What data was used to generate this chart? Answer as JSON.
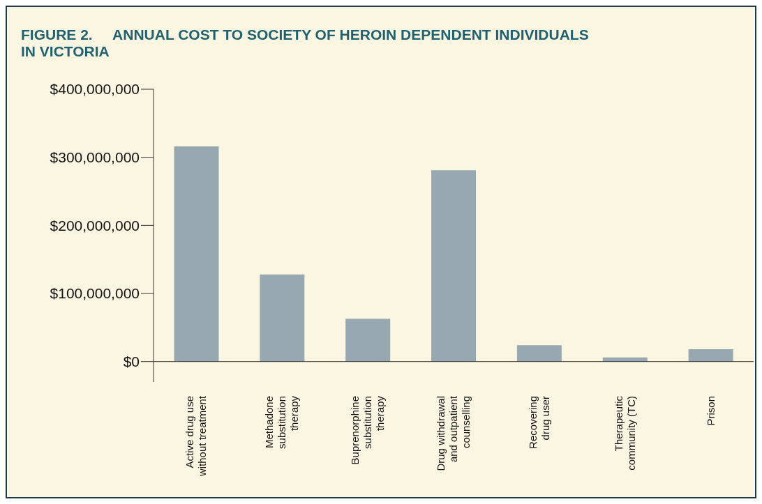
{
  "chart_data": {
    "type": "bar",
    "title": "FIGURE 2.     ANNUAL COST TO SOCIETY OF HEROIN DEPENDENT INDIVIDUALS IN VICTORIA",
    "categories": [
      "Active drug use\nwithout treatment",
      "Methadone\nsubstitution\ntherapy",
      "Buprenorphine\nsubstitution\ntherapy",
      "Drug withdrawal\nand outpatient\ncounselling",
      "Recovering\ndrug user",
      "Therapeutic\ncommunity (TC)",
      "Prison"
    ],
    "values": [
      316000000,
      128000000,
      63000000,
      281000000,
      24000000,
      6000000,
      18000000
    ],
    "color": "#97a8b0",
    "ylim": [
      -30000000,
      400000000
    ],
    "yticks": [
      {
        "value": 0,
        "label": "$0"
      },
      {
        "value": 100000000,
        "label": "$100,000,000"
      },
      {
        "value": 200000000,
        "label": "$200,000,000"
      },
      {
        "value": 300000000,
        "label": "$300,000,000"
      },
      {
        "value": 400000000,
        "label": "$400,000,000"
      }
    ],
    "ref_lines": [
      {
        "axis": "y",
        "value": 0,
        "color": "#333333"
      }
    ],
    "legend": false
  }
}
